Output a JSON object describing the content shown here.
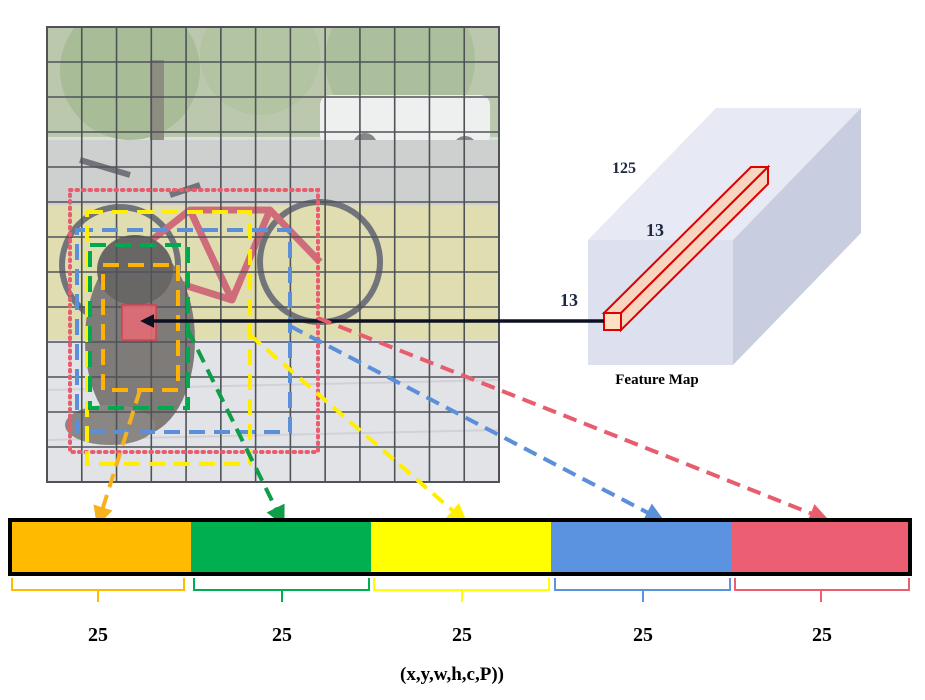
{
  "image_alt": "Photo of a dog next to a red bicycle against a yellow wall, overlaid with a 13x13 grid",
  "feature_map": {
    "label": "Feature Map",
    "depth_label": "125",
    "height_label": "13",
    "width_label": "13"
  },
  "boxes": [
    {
      "color": "#ffb300"
    },
    {
      "color": "#00a850"
    },
    {
      "color": "#ffee00"
    },
    {
      "color": "#5b8fd9"
    },
    {
      "color": "#e85d6e"
    }
  ],
  "output_vector": {
    "segments": [
      {
        "color": "#ffbb00",
        "size_label": "25"
      },
      {
        "color": "#00b050",
        "size_label": "25"
      },
      {
        "color": "#ffff00",
        "size_label": "25"
      },
      {
        "color": "#5b93e0",
        "size_label": "25"
      },
      {
        "color": "#ec5f72",
        "size_label": "25"
      }
    ],
    "caption": "(x,y,w,h,c,P))"
  },
  "grid": {
    "rows": 13,
    "cols": 13
  }
}
